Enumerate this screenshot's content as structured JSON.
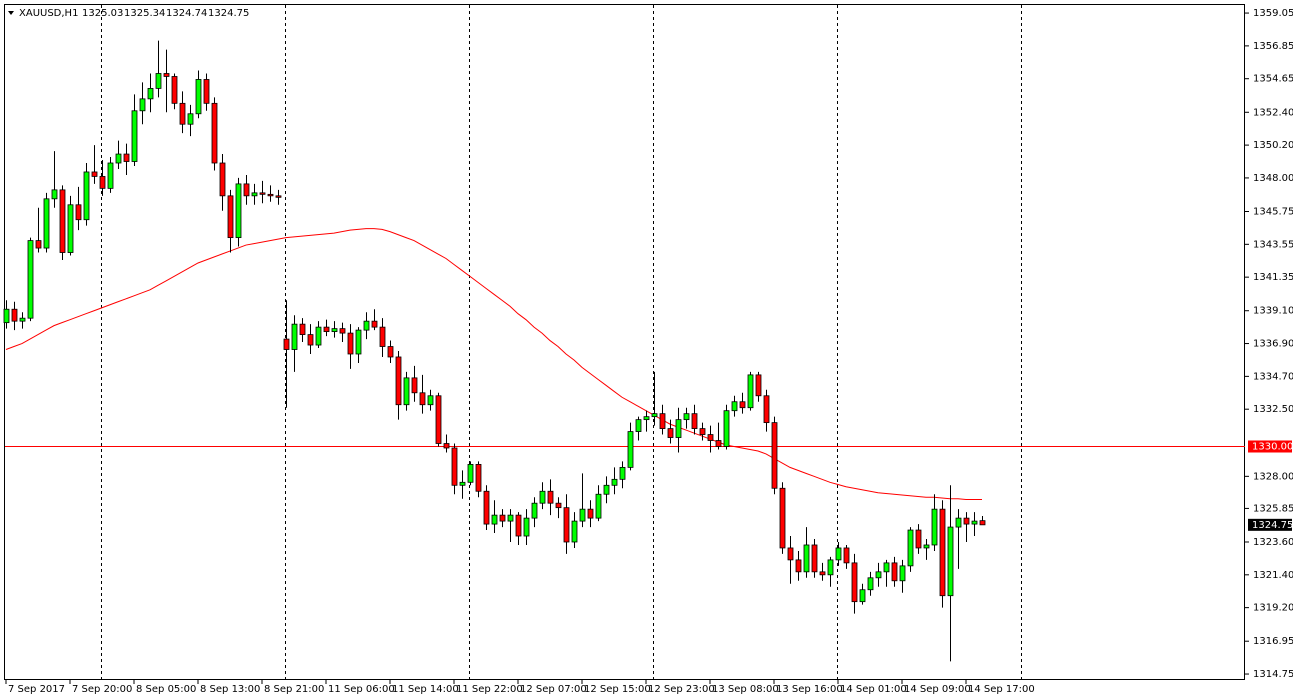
{
  "chart_data": {
    "type": "candlestick",
    "title": "XAUUSD,H1",
    "ylim": [
      1314.35,
      1359.59
    ],
    "yticks": [
      1359.05,
      1356.85,
      1354.65,
      {
        "value": 1352.4,
        "label": "1352.40"
      },
      {
        "value": 1350.2,
        "label": "1350.20"
      },
      {
        "value": 1348,
        "label": "1348.00"
      },
      1345.75,
      1343.55,
      1341.35,
      {
        "value": 1339.1,
        "label": "1339.10"
      },
      {
        "value": 1336.9,
        "label": "1336.90"
      },
      {
        "value": 1334.7,
        "label": "1334.70"
      },
      {
        "value": 1332.5,
        "label": "1332.50"
      },
      {
        "value": 1328,
        "label": "1328.00"
      },
      1325.85,
      {
        "value": 1323.6,
        "label": "1323.60"
      },
      {
        "value": 1321.4,
        "label": "1321.40"
      },
      {
        "value": 1319.2,
        "label": "1319.20"
      },
      1316.95,
      1314.75
    ],
    "up_color": "#00ff00",
    "down_color": "#ff0000",
    "hline": {
      "value": 1330,
      "label": "1330.00",
      "color": "#ff0000"
    },
    "ma": {
      "color": "#ff0000",
      "values": [
        1336.5,
        1336.7,
        1336.9,
        1337.2,
        1337.5,
        1337.8,
        1338.1,
        1338.3,
        1338.5,
        1338.7,
        1338.9,
        1339.1,
        1339.3,
        1339.5,
        1339.7,
        1339.9,
        1340.1,
        1340.3,
        1340.5,
        1340.8,
        1341.1,
        1341.4,
        1341.7,
        1342.0,
        1342.3,
        1342.5,
        1342.7,
        1342.9,
        1343.1,
        1343.3,
        1343.5,
        1343.6,
        1343.7,
        1343.8,
        1343.9,
        1344.0,
        1344.05,
        1344.1,
        1344.15,
        1344.2,
        1344.25,
        1344.3,
        1344.4,
        1344.5,
        1344.55,
        1344.6,
        1344.6,
        1344.55,
        1344.4,
        1344.2,
        1344.0,
        1343.8,
        1343.5,
        1343.2,
        1342.9,
        1342.6,
        1342.2,
        1341.8,
        1341.4,
        1341.0,
        1340.6,
        1340.2,
        1339.8,
        1339.4,
        1338.9,
        1338.5,
        1338.0,
        1337.6,
        1337.1,
        1336.7,
        1336.2,
        1335.8,
        1335.3,
        1334.9,
        1334.5,
        1334.1,
        1333.7,
        1333.3,
        1333.0,
        1332.7,
        1332.4,
        1332.1,
        1331.8,
        1331.5,
        1331.3,
        1331.1,
        1330.9,
        1330.7,
        1330.5,
        1330.3,
        1330.1,
        1330.0,
        1329.9,
        1329.8,
        1329.7,
        1329.5,
        1329.2,
        1328.9,
        1328.6,
        1328.4,
        1328.2,
        1328.0,
        1327.8,
        1327.6,
        1327.45,
        1327.3,
        1327.2,
        1327.1,
        1327.0,
        1326.9,
        1326.85,
        1326.8,
        1326.75,
        1326.7,
        1326.65,
        1326.6,
        1326.6,
        1326.55,
        1326.5,
        1326.5,
        1326.45,
        1326.45,
        1326.45
      ]
    },
    "categories": [
      "7 Sep 2017",
      null,
      null,
      null,
      null,
      null,
      null,
      null,
      "7 Sep 20:00",
      null,
      null,
      null,
      null,
      null,
      null,
      null,
      "8 Sep 05:00",
      null,
      null,
      null,
      null,
      null,
      null,
      null,
      "8 Sep 13:00",
      null,
      null,
      null,
      null,
      null,
      null,
      null,
      "8 Sep 21:00",
      null,
      null,
      null,
      null,
      null,
      null,
      null,
      "11 Sep 06:00",
      null,
      null,
      null,
      null,
      null,
      null,
      null,
      "11 Sep 14:00",
      null,
      null,
      null,
      null,
      null,
      null,
      null,
      "11 Sep 22:00",
      null,
      null,
      null,
      null,
      null,
      null,
      null,
      "12 Sep 07:00",
      null,
      null,
      null,
      null,
      null,
      null,
      null,
      "12 Sep 15:00",
      null,
      null,
      null,
      null,
      null,
      null,
      null,
      "12 Sep 23:00",
      null,
      null,
      null,
      null,
      null,
      null,
      null,
      "13 Sep 08:00",
      null,
      null,
      null,
      null,
      null,
      null,
      null,
      "13 Sep 16:00",
      null,
      null,
      null,
      null,
      null,
      null,
      null,
      "14 Sep 01:00",
      null,
      null,
      null,
      null,
      null,
      null,
      null,
      "14 Sep 09:00",
      null,
      null,
      null,
      null,
      null,
      null,
      null,
      "14 Sep 17:00",
      null,
      null
    ],
    "ohlc": [
      [
        1338.3,
        1339.8,
        1337.9,
        1339.2
      ],
      [
        1339.2,
        1339.7,
        1337.8,
        1338.4
      ],
      [
        1338.4,
        1339.0,
        1337.9,
        1338.6
      ],
      [
        1338.6,
        1344.0,
        1338.4,
        1343.8
      ],
      [
        1343.8,
        1346.0,
        1343.0,
        1343.3
      ],
      [
        1343.3,
        1347.0,
        1343.0,
        1346.6
      ],
      [
        1346.6,
        1349.8,
        1346.0,
        1347.2
      ],
      [
        1347.2,
        1347.5,
        1342.5,
        1343.0
      ],
      [
        1343.0,
        1346.8,
        1342.8,
        1346.2
      ],
      [
        1346.2,
        1347.4,
        1344.5,
        1345.2
      ],
      [
        1345.2,
        1349.0,
        1344.8,
        1348.4
      ],
      [
        1348.4,
        1350.2,
        1347.6,
        1348.1
      ],
      [
        1348.1,
        1349.2,
        1346.8,
        1347.3
      ],
      [
        1347.3,
        1349.4,
        1347.0,
        1349.0
      ],
      [
        1349.0,
        1350.5,
        1348.6,
        1349.6
      ],
      [
        1349.6,
        1350.3,
        1348.2,
        1349.1
      ],
      [
        1349.1,
        1353.6,
        1348.8,
        1352.5
      ],
      [
        1352.5,
        1354.4,
        1351.6,
        1353.3
      ],
      [
        1353.3,
        1355.0,
        1352.4,
        1354.0
      ],
      [
        1354.0,
        1357.2,
        1353.4,
        1355.0
      ],
      [
        1355.0,
        1356.6,
        1352.4,
        1354.8
      ],
      [
        1354.8,
        1355.0,
        1352.6,
        1353.0
      ],
      [
        1353.0,
        1353.8,
        1351.0,
        1351.6
      ],
      [
        1351.6,
        1352.9,
        1350.8,
        1352.3
      ],
      [
        1352.3,
        1355.2,
        1352.0,
        1354.6
      ],
      [
        1354.6,
        1355.0,
        1352.5,
        1353.0
      ],
      [
        1353.0,
        1353.4,
        1348.5,
        1349.0
      ],
      [
        1349.0,
        1349.6,
        1345.8,
        1346.8
      ],
      [
        1346.8,
        1347.2,
        1343.0,
        1344.0
      ],
      [
        1344.0,
        1348.0,
        1343.4,
        1347.6
      ],
      [
        1347.6,
        1348.2,
        1346.2,
        1346.8
      ],
      [
        1346.8,
        1347.6,
        1346.2,
        1347.0
      ],
      [
        1347.0,
        1347.8,
        1346.3,
        1346.9
      ],
      [
        1346.9,
        1347.5,
        1346.4,
        1346.8
      ],
      [
        1346.8,
        1347.2,
        1346.2,
        1346.7
      ],
      [
        1337.2,
        1339.8,
        1332.6,
        1336.5
      ],
      [
        1336.5,
        1338.8,
        1335.0,
        1338.2
      ],
      [
        1338.2,
        1338.6,
        1337.0,
        1337.5
      ],
      [
        1337.5,
        1338.2,
        1336.2,
        1336.8
      ],
      [
        1336.8,
        1338.4,
        1336.6,
        1338.0
      ],
      [
        1338.0,
        1338.5,
        1337.4,
        1337.7
      ],
      [
        1337.7,
        1338.4,
        1337.3,
        1337.9
      ],
      [
        1337.9,
        1338.3,
        1337.0,
        1337.6
      ],
      [
        1337.6,
        1338.2,
        1335.2,
        1336.2
      ],
      [
        1336.2,
        1338.0,
        1335.6,
        1337.8
      ],
      [
        1337.8,
        1339.0,
        1337.2,
        1338.4
      ],
      [
        1338.4,
        1339.2,
        1337.8,
        1338.0
      ],
      [
        1338.0,
        1338.6,
        1336.0,
        1336.7
      ],
      [
        1336.7,
        1337.1,
        1335.6,
        1336.0
      ],
      [
        1336.0,
        1336.4,
        1331.8,
        1332.8
      ],
      [
        1332.8,
        1335.0,
        1332.4,
        1334.6
      ],
      [
        1334.6,
        1335.4,
        1333.0,
        1333.6
      ],
      [
        1333.6,
        1334.8,
        1332.2,
        1332.8
      ],
      [
        1332.8,
        1333.8,
        1332.4,
        1333.4
      ],
      [
        1333.4,
        1333.6,
        1330.0,
        1330.2
      ],
      [
        1330.2,
        1330.8,
        1329.6,
        1329.9
      ],
      [
        1329.9,
        1330.2,
        1326.8,
        1327.4
      ],
      [
        1327.4,
        1328.4,
        1326.5,
        1327.6
      ],
      [
        1327.6,
        1329.0,
        1327.4,
        1328.8
      ],
      [
        1328.8,
        1329.0,
        1326.6,
        1327.0
      ],
      [
        1327.0,
        1327.4,
        1324.4,
        1324.8
      ],
      [
        1324.8,
        1326.4,
        1324.2,
        1325.4
      ],
      [
        1325.4,
        1325.8,
        1324.6,
        1325.0
      ],
      [
        1325.0,
        1325.8,
        1323.6,
        1325.4
      ],
      [
        1325.4,
        1325.6,
        1323.4,
        1324.0
      ],
      [
        1324.0,
        1325.8,
        1323.4,
        1325.2
      ],
      [
        1325.2,
        1326.6,
        1324.6,
        1326.2
      ],
      [
        1326.2,
        1327.6,
        1325.8,
        1327.0
      ],
      [
        1327.0,
        1327.8,
        1325.4,
        1326.2
      ],
      [
        1326.2,
        1326.6,
        1325.2,
        1325.9
      ],
      [
        1325.9,
        1326.8,
        1322.8,
        1323.6
      ],
      [
        1323.6,
        1325.6,
        1323.2,
        1325.0
      ],
      [
        1325.0,
        1328.2,
        1324.6,
        1325.8
      ],
      [
        1325.8,
        1326.4,
        1324.6,
        1325.2
      ],
      [
        1325.2,
        1327.4,
        1325.0,
        1326.8
      ],
      [
        1326.8,
        1328.0,
        1326.2,
        1327.4
      ],
      [
        1327.4,
        1328.6,
        1326.8,
        1327.8
      ],
      [
        1327.8,
        1329.0,
        1327.2,
        1328.6
      ],
      [
        1328.6,
        1331.6,
        1328.4,
        1331.0
      ],
      [
        1331.0,
        1332.0,
        1330.4,
        1331.8
      ],
      [
        1331.8,
        1332.4,
        1331.0,
        1332.0
      ],
      [
        1332.0,
        1335.0,
        1331.4,
        1332.2
      ],
      [
        1332.2,
        1332.8,
        1330.8,
        1331.2
      ],
      [
        1331.2,
        1331.8,
        1330.2,
        1330.6
      ],
      [
        1330.6,
        1332.6,
        1329.6,
        1331.8
      ],
      [
        1331.8,
        1332.6,
        1331.2,
        1332.2
      ],
      [
        1332.2,
        1332.8,
        1330.8,
        1331.2
      ],
      [
        1331.2,
        1331.6,
        1330.4,
        1330.8
      ],
      [
        1330.8,
        1331.4,
        1329.6,
        1330.4
      ],
      [
        1330.4,
        1331.6,
        1329.8,
        1330.0
      ],
      [
        1330.0,
        1332.8,
        1329.8,
        1332.4
      ],
      [
        1332.4,
        1333.4,
        1332.0,
        1333.0
      ],
      [
        1333.0,
        1333.6,
        1332.2,
        1332.6
      ],
      [
        1332.6,
        1335.0,
        1332.4,
        1334.8
      ],
      [
        1334.8,
        1335.0,
        1333.0,
        1333.4
      ],
      [
        1333.4,
        1333.8,
        1331.0,
        1331.6
      ],
      [
        1331.6,
        1332.0,
        1326.8,
        1327.2
      ],
      [
        1327.2,
        1327.6,
        1322.8,
        1323.2
      ],
      [
        1323.2,
        1324.0,
        1320.8,
        1322.4
      ],
      [
        1322.4,
        1323.0,
        1321.0,
        1321.6
      ],
      [
        1321.6,
        1324.6,
        1321.2,
        1323.4
      ],
      [
        1323.4,
        1323.8,
        1321.2,
        1321.6
      ],
      [
        1321.6,
        1322.2,
        1321.0,
        1321.4
      ],
      [
        1321.4,
        1322.6,
        1320.6,
        1322.4
      ],
      [
        1322.4,
        1323.6,
        1322.0,
        1323.2
      ],
      [
        1323.2,
        1323.4,
        1321.8,
        1322.2
      ],
      [
        1322.2,
        1322.8,
        1318.8,
        1319.6
      ],
      [
        1319.6,
        1320.8,
        1319.4,
        1320.4
      ],
      [
        1320.4,
        1321.6,
        1320.0,
        1321.2
      ],
      [
        1321.2,
        1322.2,
        1320.6,
        1321.6
      ],
      [
        1321.6,
        1322.4,
        1320.6,
        1322.2
      ],
      [
        1322.2,
        1322.6,
        1320.6,
        1321.0
      ],
      [
        1321.0,
        1322.4,
        1320.2,
        1322.0
      ],
      [
        1322.0,
        1324.6,
        1321.6,
        1324.4
      ],
      [
        1324.4,
        1324.8,
        1322.8,
        1323.2
      ],
      [
        1323.2,
        1323.8,
        1322.4,
        1323.4
      ],
      [
        1323.4,
        1326.8,
        1323.0,
        1325.8
      ],
      [
        1325.8,
        1326.4,
        1319.2,
        1320.0
      ],
      [
        1320.0,
        1327.4,
        1315.6,
        1324.6
      ],
      [
        1324.6,
        1325.8,
        1321.8,
        1325.2
      ],
      [
        1325.2,
        1325.6,
        1323.6,
        1324.8
      ],
      [
        1324.8,
        1325.6,
        1324.0,
        1325.0
      ],
      [
        1325.03,
        1325.34,
        1324.74,
        1324.75
      ]
    ]
  }
}
